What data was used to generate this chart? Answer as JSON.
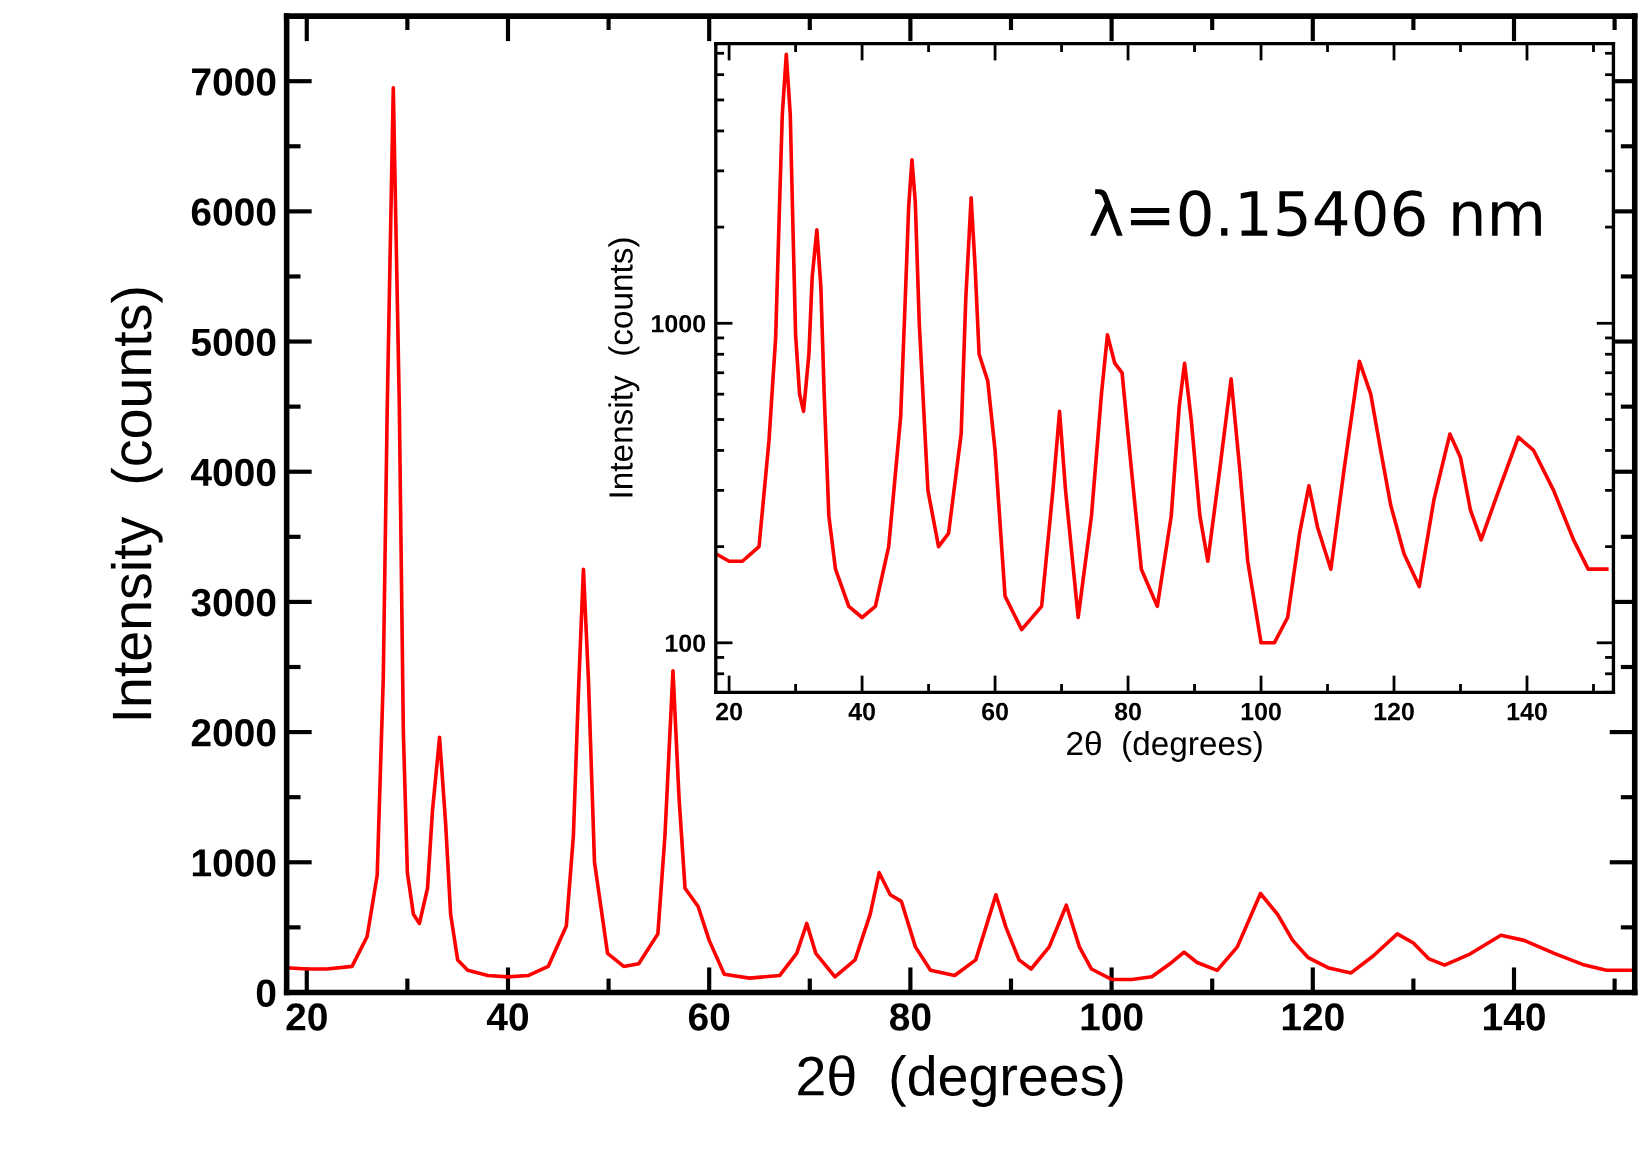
{
  "chart_data": [
    {
      "type": "line",
      "xlabel": "2θ  (degrees)",
      "ylabel": "Intensity  (counts)",
      "x": [
        18.0,
        20.0,
        22.0,
        24.5,
        26.0,
        27.0,
        27.6,
        28.0,
        28.6,
        29.2,
        29.6,
        30.0,
        30.6,
        31.2,
        32.0,
        32.5,
        33.2,
        33.8,
        34.3,
        35.0,
        36.0,
        38.0,
        40.0,
        42.0,
        44.0,
        45.8,
        46.5,
        47.0,
        47.5,
        48.0,
        48.6,
        49.9,
        51.5,
        53.0,
        54.9,
        55.6,
        56.4,
        57.0,
        57.6,
        58.9,
        60.0,
        61.5,
        64.0,
        67.0,
        68.7,
        69.7,
        70.6,
        72.5,
        74.5,
        76.0,
        76.9,
        78.0,
        79.1,
        80.5,
        82.0,
        84.4,
        86.5,
        87.7,
        88.5,
        89.5,
        90.8,
        92.0,
        93.8,
        95.5,
        96.8,
        98.0,
        100.0,
        102.0,
        104.0,
        105.8,
        107.2,
        108.5,
        110.5,
        112.5,
        114.8,
        116.5,
        118.0,
        119.5,
        121.5,
        123.8,
        126.0,
        128.4,
        130.0,
        131.5,
        133.1,
        135.5,
        138.7,
        141.0,
        144.0,
        147.0,
        149.2,
        152.0
      ],
      "series": [
        {
          "color": "#ff0000",
          "values": [
            190,
            180,
            180,
            200,
            430,
            900,
            2400,
            4500,
            6950,
            4500,
            2000,
            920,
            600,
            530,
            800,
            1400,
            1960,
            1300,
            600,
            250,
            170,
            130,
            120,
            130,
            200,
            510,
            1200,
            2300,
            3250,
            2400,
            1000,
            300,
            200,
            220,
            450,
            1200,
            2470,
            1500,
            800,
            660,
            400,
            140,
            110,
            130,
            300,
            530,
            300,
            120,
            250,
            600,
            920,
            750,
            700,
            350,
            170,
            130,
            250,
            550,
            750,
            500,
            250,
            180,
            350,
            670,
            350,
            180,
            100,
            100,
            120,
            220,
            310,
            230,
            170,
            350,
            760,
            600,
            400,
            270,
            190,
            150,
            280,
            450,
            380,
            260,
            210,
            290,
            440,
            400,
            300,
            210,
            170,
            170
          ]
        }
      ],
      "xlim": [
        18,
        152
      ],
      "ylim": [
        0,
        7500
      ],
      "xticks": [
        20,
        {
          "value": 30,
          "label": null
        },
        40,
        {
          "value": 50,
          "label": null
        },
        60,
        {
          "value": 70,
          "label": null
        },
        80,
        {
          "value": 90,
          "label": null
        },
        100,
        {
          "value": 110,
          "label": null
        },
        120,
        {
          "value": 130,
          "label": null
        },
        140,
        {
          "value": 150,
          "label": null
        }
      ],
      "yticks": [
        0,
        {
          "value": 500,
          "label": null
        },
        1000,
        {
          "value": 1500,
          "label": null
        },
        2000,
        {
          "value": 2500,
          "label": null
        },
        3000,
        {
          "value": 3500,
          "label": null
        },
        4000,
        {
          "value": 4500,
          "label": null
        },
        5000,
        {
          "value": 5500,
          "label": null
        },
        6000,
        {
          "value": 6500,
          "label": null
        },
        7000
      ]
    },
    {
      "type": "line",
      "xlabel": "2θ  (degrees)",
      "ylabel": "Intensity  (counts)",
      "log": "y",
      "annotations": [
        "λ=0.15406 nm"
      ],
      "x": [
        18.0,
        20.0,
        22.0,
        24.5,
        26.0,
        27.0,
        27.6,
        28.0,
        28.6,
        29.2,
        29.6,
        30.0,
        30.6,
        31.2,
        32.0,
        32.5,
        33.2,
        33.8,
        34.3,
        35.0,
        36.0,
        38.0,
        40.0,
        42.0,
        44.0,
        45.8,
        46.5,
        47.0,
        47.5,
        48.0,
        48.6,
        49.9,
        51.5,
        53.0,
        54.9,
        55.6,
        56.4,
        57.0,
        57.6,
        58.9,
        60.0,
        61.5,
        64.0,
        67.0,
        68.7,
        69.7,
        70.6,
        72.5,
        74.5,
        76.0,
        76.9,
        78.0,
        79.1,
        80.5,
        82.0,
        84.4,
        86.5,
        87.7,
        88.5,
        89.5,
        90.8,
        92.0,
        93.8,
        95.5,
        96.8,
        98.0,
        100.0,
        102.0,
        104.0,
        105.8,
        107.2,
        108.5,
        110.5,
        112.5,
        114.8,
        116.5,
        118.0,
        119.5,
        121.5,
        123.8,
        126.0,
        128.4,
        130.0,
        131.5,
        133.1,
        135.5,
        138.7,
        141.0,
        144.0,
        147.0,
        149.2,
        152.0
      ],
      "series": [
        {
          "color": "#ff0000",
          "values": [
            190,
            180,
            180,
            200,
            430,
            900,
            2400,
            4500,
            6950,
            4500,
            2000,
            920,
            600,
            530,
            800,
            1400,
            1960,
            1300,
            600,
            250,
            170,
            130,
            120,
            130,
            200,
            510,
            1200,
            2300,
            3250,
            2400,
            1000,
            300,
            200,
            220,
            450,
            1200,
            2470,
            1500,
            800,
            660,
            400,
            140,
            110,
            130,
            300,
            530,
            300,
            120,
            250,
            600,
            920,
            750,
            700,
            350,
            170,
            130,
            250,
            550,
            750,
            500,
            250,
            180,
            350,
            670,
            350,
            180,
            100,
            100,
            120,
            220,
            310,
            230,
            170,
            350,
            760,
            600,
            400,
            270,
            190,
            150,
            280,
            450,
            380,
            260,
            210,
            290,
            440,
            400,
            300,
            210,
            170,
            170
          ]
        }
      ],
      "xlim": [
        18,
        153
      ],
      "ylim": [
        70,
        7500
      ],
      "xticks": [
        20,
        {
          "value": 30,
          "label": null
        },
        40,
        {
          "value": 50,
          "label": null
        },
        60,
        {
          "value": 70,
          "label": null
        },
        80,
        {
          "value": 90,
          "label": null
        },
        100,
        {
          "value": 110,
          "label": null
        },
        120,
        {
          "value": 130,
          "label": null
        },
        140,
        {
          "value": 150,
          "label": null
        }
      ],
      "yticks": [
        {
          "value": 70,
          "label": null
        },
        {
          "value": 80,
          "label": null
        },
        {
          "value": 90,
          "label": null
        },
        100,
        {
          "value": 200,
          "label": null
        },
        {
          "value": 300,
          "label": null
        },
        {
          "value": 400,
          "label": null
        },
        {
          "value": 500,
          "label": null
        },
        {
          "value": 600,
          "label": null
        },
        {
          "value": 700,
          "label": null
        },
        {
          "value": 800,
          "label": null
        },
        {
          "value": 900,
          "label": null
        },
        1000,
        {
          "value": 2000,
          "label": null
        },
        {
          "value": 3000,
          "label": null
        },
        {
          "value": 4000,
          "label": null
        },
        {
          "value": 5000,
          "label": null
        },
        {
          "value": 6000,
          "label": null
        },
        {
          "value": 7000,
          "label": null
        }
      ]
    }
  ]
}
